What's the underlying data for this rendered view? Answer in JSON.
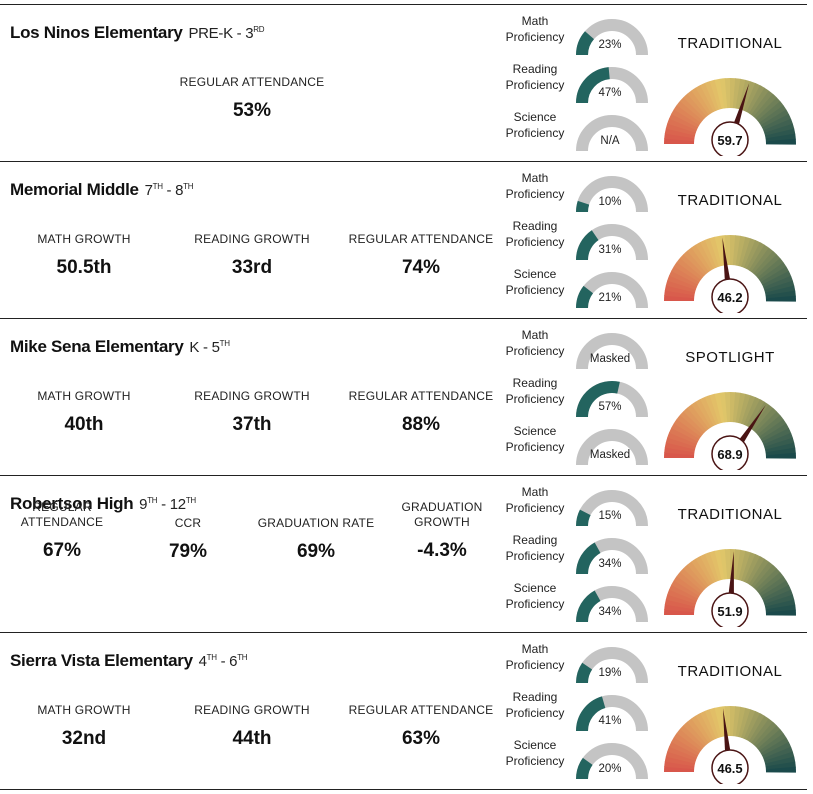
{
  "colors": {
    "prof_track": "#c4c4c4",
    "prof_fill": "#23645f",
    "gauge_low": "#d8544a",
    "gauge_mid": "#e3c86a",
    "gauge_high": "#16474a",
    "needle": "#4a1414",
    "score_circle_border": "#4a1414"
  },
  "schools": [
    {
      "name": "Los Ninos Elementary",
      "grade_from": "PRE-K",
      "grade_from_sup": "",
      "grade_to": "3",
      "grade_to_sup": "RD",
      "metrics": [
        {
          "label": "REGULAR ATTENDANCE",
          "value": "53%"
        }
      ],
      "proficiency": [
        {
          "line1": "Math",
          "line2": "Proficiency",
          "display": "23%",
          "fraction": 0.23
        },
        {
          "line1": "Reading",
          "line2": "Proficiency",
          "display": "47%",
          "fraction": 0.47
        },
        {
          "line1": "Science",
          "line2": "Proficiency",
          "display": "N/A",
          "fraction": 0
        }
      ],
      "model": "TRADITIONAL",
      "score": "59.7",
      "score_value": 59.7
    },
    {
      "name": "Memorial Middle",
      "grade_from": "7",
      "grade_from_sup": "TH",
      "grade_to": "8",
      "grade_to_sup": "TH",
      "metrics": [
        {
          "label": "MATH GROWTH",
          "value": "50.5th"
        },
        {
          "label": "READING GROWTH",
          "value": "33rd"
        },
        {
          "label": "REGULAR ATTENDANCE",
          "value": "74%"
        }
      ],
      "proficiency": [
        {
          "line1": "Math",
          "line2": "Proficiency",
          "display": "10%",
          "fraction": 0.1
        },
        {
          "line1": "Reading",
          "line2": "Proficiency",
          "display": "31%",
          "fraction": 0.31
        },
        {
          "line1": "Science",
          "line2": "Proficiency",
          "display": "21%",
          "fraction": 0.21
        }
      ],
      "model": "TRADITIONAL",
      "score": "46.2",
      "score_value": 46.2
    },
    {
      "name": "Mike Sena Elementary",
      "grade_from": "K",
      "grade_from_sup": "",
      "grade_to": "5",
      "grade_to_sup": "TH",
      "metrics": [
        {
          "label": "MATH GROWTH",
          "value": "40th"
        },
        {
          "label": "READING GROWTH",
          "value": "37th"
        },
        {
          "label": "REGULAR ATTENDANCE",
          "value": "88%"
        }
      ],
      "proficiency": [
        {
          "line1": "Math",
          "line2": "Proficiency",
          "display": "Masked",
          "fraction": 0
        },
        {
          "line1": "Reading",
          "line2": "Proficiency",
          "display": "57%",
          "fraction": 0.57
        },
        {
          "line1": "Science",
          "line2": "Proficiency",
          "display": "Masked",
          "fraction": 0
        }
      ],
      "model": "SPOTLIGHT",
      "score": "68.9",
      "score_value": 68.9
    },
    {
      "name": "Robertson High",
      "grade_from": "9",
      "grade_from_sup": "TH",
      "grade_to": "12",
      "grade_to_sup": "TH",
      "metrics": [
        {
          "label": "REGULAR ATTENDANCE",
          "value": "67%"
        },
        {
          "label": "CCR",
          "value": "79%"
        },
        {
          "label": "GRADUATION RATE",
          "value": "69%"
        },
        {
          "label": "GRADUATION GROWTH",
          "value": "-4.3%"
        }
      ],
      "proficiency": [
        {
          "line1": "Math",
          "line2": "Proficiency",
          "display": "15%",
          "fraction": 0.15
        },
        {
          "line1": "Reading",
          "line2": "Proficiency",
          "display": "34%",
          "fraction": 0.34
        },
        {
          "line1": "Science",
          "line2": "Proficiency",
          "display": "34%",
          "fraction": 0.34
        }
      ],
      "model": "TRADITIONAL",
      "score": "51.9",
      "score_value": 51.9
    },
    {
      "name": "Sierra Vista Elementary",
      "grade_from": "4",
      "grade_from_sup": "TH",
      "grade_to": "6",
      "grade_to_sup": "TH",
      "metrics": [
        {
          "label": "MATH GROWTH",
          "value": "32nd"
        },
        {
          "label": "READING GROWTH",
          "value": "44th"
        },
        {
          "label": "REGULAR ATTENDANCE",
          "value": "63%"
        }
      ],
      "proficiency": [
        {
          "line1": "Math",
          "line2": "Proficiency",
          "display": "19%",
          "fraction": 0.19
        },
        {
          "line1": "Reading",
          "line2": "Proficiency",
          "display": "41%",
          "fraction": 0.41
        },
        {
          "line1": "Science",
          "line2": "Proficiency",
          "display": "20%",
          "fraction": 0.2
        }
      ],
      "model": "TRADITIONAL",
      "score": "46.5",
      "score_value": 46.5
    }
  ]
}
